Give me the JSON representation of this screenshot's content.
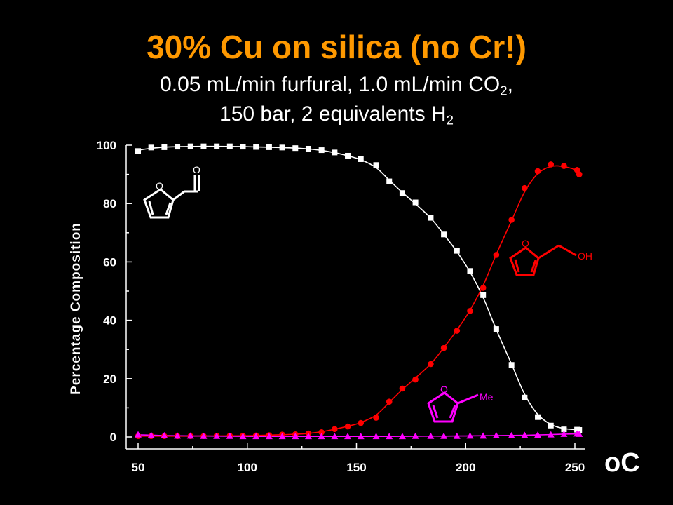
{
  "title": {
    "main": "30% Cu on silica (no Cr!)",
    "line1_a": "0.05 mL/min furfural, 1.0 mL/min CO",
    "line1_sub": "2",
    "line1_b": ",",
    "line2_a": "150 bar, 2 equivalents H",
    "line2_sub": "2"
  },
  "molecules": {
    "furfural_o1": "O",
    "furfural_o2": "O",
    "alcohol_o": "O",
    "alcohol_oh": "OH",
    "methylfuran_o": "O",
    "methylfuran_me": "Me"
  },
  "chart_data": {
    "type": "scatter",
    "xlabel": "oC",
    "ylabel": "Percentage Composition",
    "xlim": [
      50,
      250
    ],
    "ylim": [
      0,
      100
    ],
    "x_ticks": [
      50,
      100,
      150,
      200,
      250
    ],
    "y_ticks": [
      0,
      20,
      40,
      60,
      80,
      100
    ],
    "grid": false,
    "background": "#000000",
    "series": [
      {
        "color": "#ffffff",
        "marker": "square",
        "fit_curve": true,
        "x": [
          50,
          56,
          62,
          68,
          74,
          80,
          86,
          92,
          98,
          104,
          110,
          116,
          122,
          128,
          134,
          140,
          146,
          152,
          159,
          165,
          171,
          177,
          184,
          190,
          196,
          202,
          208,
          214,
          221,
          227,
          233,
          239,
          245,
          251,
          252
        ],
        "y": [
          98,
          99.2,
          99.3,
          99.5,
          99.6,
          99.6,
          99.6,
          99.6,
          99.5,
          99.4,
          99.3,
          99.2,
          99,
          98.8,
          98.3,
          97.5,
          96.4,
          95.2,
          93.2,
          87.6,
          83.6,
          80.4,
          75.1,
          69.4,
          63.8,
          56.9,
          48.6,
          37,
          24.7,
          13.5,
          6.8,
          3.9,
          2.6,
          2.5,
          2.4
        ]
      },
      {
        "color": "#ff0000",
        "marker": "circle",
        "fit_curve": true,
        "x": [
          50,
          56,
          62,
          68,
          74,
          80,
          86,
          92,
          98,
          104,
          110,
          116,
          122,
          128,
          134,
          140,
          146,
          152,
          159,
          165,
          171,
          177,
          184,
          190,
          196,
          202,
          208,
          214,
          221,
          227,
          233,
          239,
          245,
          251,
          252
        ],
        "y": [
          0.3,
          0.3,
          0.3,
          0.3,
          0.3,
          0.3,
          0.4,
          0.4,
          0.4,
          0.5,
          0.6,
          0.8,
          0.9,
          1.2,
          1.6,
          2.7,
          3.6,
          4.8,
          6.6,
          12.1,
          16.6,
          19.7,
          25,
          30.5,
          36.4,
          43.2,
          51.1,
          62.4,
          74.4,
          85.3,
          91.1,
          93.4,
          92.9,
          91.5,
          90
        ]
      },
      {
        "color": "#ff00ff",
        "marker": "triangle",
        "fit_curve": true,
        "x": [
          50,
          56,
          62,
          68,
          74,
          80,
          86,
          92,
          98,
          104,
          110,
          116,
          122,
          128,
          134,
          140,
          146,
          152,
          159,
          165,
          171,
          177,
          184,
          190,
          196,
          202,
          208,
          214,
          221,
          227,
          233,
          239,
          245,
          251,
          252
        ],
        "y": [
          0.8,
          0.6,
          0.5,
          0.4,
          0.4,
          0.3,
          0.3,
          0.3,
          0.2,
          0.2,
          0.2,
          0.2,
          0.2,
          0.2,
          0.2,
          0.2,
          0.2,
          0.2,
          0.2,
          0.2,
          0.2,
          0.3,
          0.3,
          0.3,
          0.3,
          0.4,
          0.4,
          0.5,
          0.5,
          0.6,
          0.7,
          0.8,
          1,
          1.1,
          1
        ]
      }
    ]
  }
}
